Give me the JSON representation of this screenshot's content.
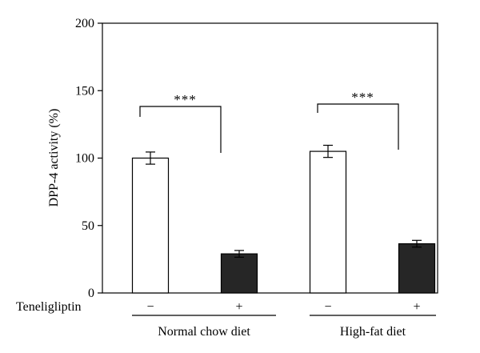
{
  "chart_data": {
    "type": "bar",
    "title": "",
    "xlabel": "",
    "ylabel": "DPP-4 activity (%)",
    "ylim": [
      0,
      200
    ],
    "yticks": [
      0,
      50,
      100,
      150,
      200
    ],
    "grid": false,
    "treatment_row_label": "Teneligliptin",
    "groups": [
      {
        "label": "Normal chow diet",
        "bars": [
          {
            "treatment": "−",
            "value": 100,
            "error": 4.5,
            "fill": "#ffffff"
          },
          {
            "treatment": "+",
            "value": 29,
            "error": 2.5,
            "fill": "#262626"
          }
        ],
        "significance": "***"
      },
      {
        "label": "High-fat diet",
        "bars": [
          {
            "treatment": "−",
            "value": 105,
            "error": 4.5,
            "fill": "#ffffff"
          },
          {
            "treatment": "+",
            "value": 36.5,
            "error": 2.5,
            "fill": "#262626"
          }
        ],
        "significance": "***"
      }
    ]
  }
}
